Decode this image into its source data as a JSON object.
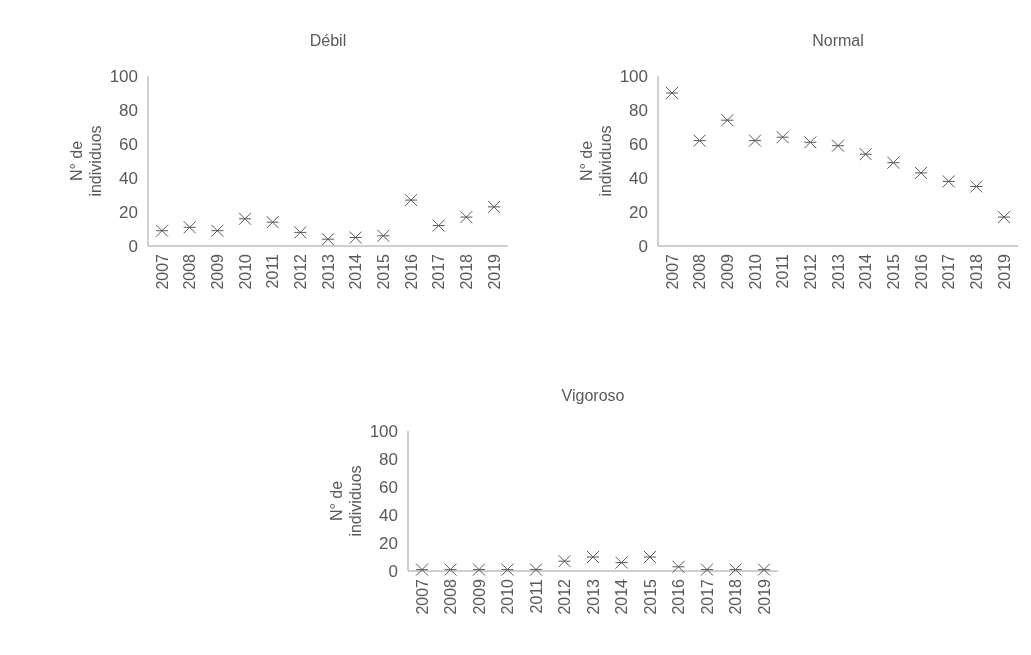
{
  "chart_data": [
    {
      "type": "scatter",
      "title": "Débil",
      "ylabel": "N° de individuos",
      "categories": [
        "2007",
        "2008",
        "2009",
        "2010",
        "2011",
        "2012",
        "2013",
        "2014",
        "2015",
        "2016",
        "2017",
        "2018",
        "2019"
      ],
      "values": [
        9,
        11,
        9,
        16,
        14,
        8,
        4,
        5,
        6,
        27,
        12,
        17,
        23
      ],
      "color": "#595959",
      "marker": "cross",
      "ylim": [
        0,
        100
      ],
      "yticks": [
        0,
        20,
        40,
        60,
        80,
        100
      ],
      "grid": false
    },
    {
      "type": "scatter",
      "title": "Normal",
      "ylabel": "N° de individuos",
      "categories": [
        "2007",
        "2008",
        "2009",
        "2010",
        "2011",
        "2012",
        "2013",
        "2014",
        "2015",
        "2016",
        "2017",
        "2018",
        "2019"
      ],
      "values": [
        90,
        62,
        74,
        62,
        64,
        61,
        59,
        54,
        49,
        43,
        38,
        35,
        17
      ],
      "color": "#595959",
      "marker": "cross",
      "ylim": [
        0,
        100
      ],
      "yticks": [
        0,
        20,
        40,
        60,
        80,
        100
      ],
      "grid": false
    },
    {
      "type": "scatter",
      "title": "Vigoroso",
      "ylabel": "N° de individuos",
      "categories": [
        "2007",
        "2008",
        "2009",
        "2010",
        "2011",
        "2012",
        "2013",
        "2014",
        "2015",
        "2016",
        "2017",
        "2018",
        "2019"
      ],
      "values": [
        1,
        1,
        1,
        1,
        1,
        7,
        10,
        6,
        10,
        3,
        1,
        1,
        1
      ],
      "color": "#595959",
      "marker": "cross",
      "ylim": [
        0,
        100
      ],
      "yticks": [
        0,
        20,
        40,
        60,
        80,
        100
      ],
      "grid": false
    }
  ]
}
